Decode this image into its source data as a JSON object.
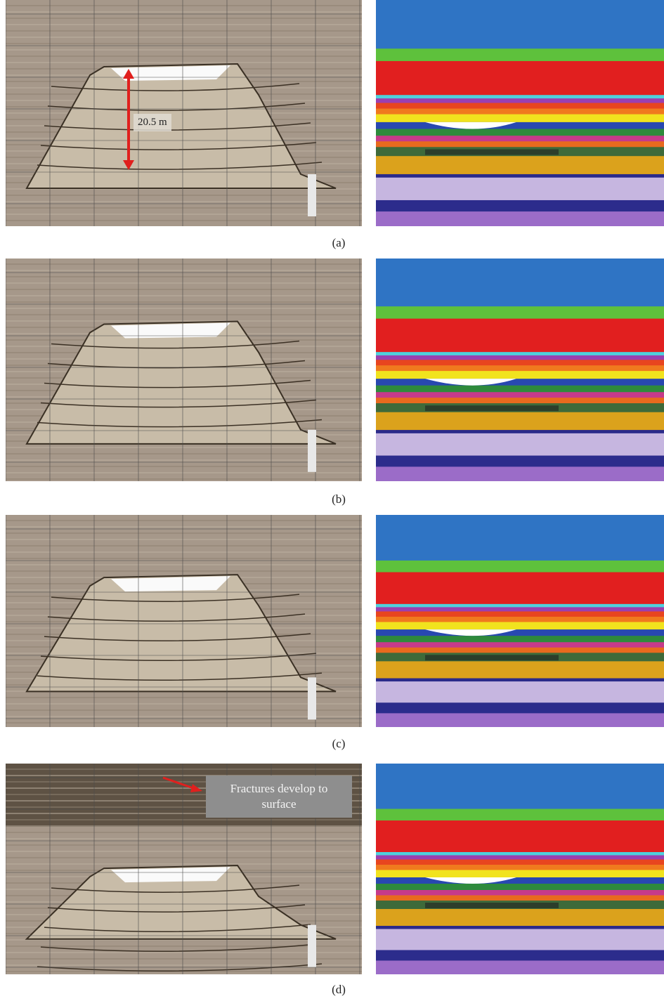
{
  "panels": [
    {
      "label": "(a)",
      "annotation": "20.5 m"
    },
    {
      "label": "(b)"
    },
    {
      "label": "(c)"
    },
    {
      "label": "(d)",
      "annotation": "Fractures develop to surface"
    }
  ]
}
